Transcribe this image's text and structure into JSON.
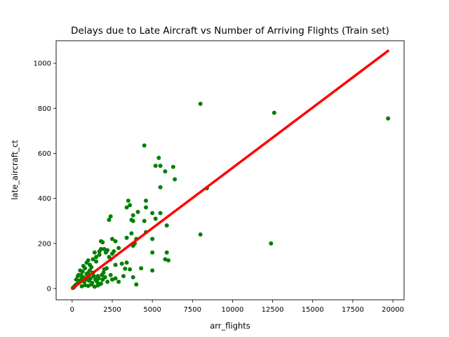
{
  "chart_data": {
    "type": "scatter",
    "title": "Delays due to Late Aircraft vs Number of Arriving Flights (Train set)",
    "xlabel": "arr_flights",
    "ylabel": "late_aircraft_ct",
    "xlim": [
      -1000,
      20700
    ],
    "ylim": [
      -50,
      1100
    ],
    "xticks": [
      0,
      2500,
      5000,
      7500,
      10000,
      12500,
      15000,
      17500,
      20000
    ],
    "yticks": [
      0,
      200,
      400,
      600,
      800,
      1000
    ],
    "grid": false,
    "legend": "none",
    "series": [
      {
        "type": "scatter",
        "color": "#008000",
        "points": [
          [
            8000,
            820
          ],
          [
            12600,
            780
          ],
          [
            19700,
            755
          ],
          [
            4500,
            635
          ],
          [
            5400,
            580
          ],
          [
            5200,
            545
          ],
          [
            5500,
            545
          ],
          [
            6300,
            540
          ],
          [
            5800,
            520
          ],
          [
            6400,
            485
          ],
          [
            5500,
            450
          ],
          [
            8400,
            445
          ],
          [
            4600,
            390
          ],
          [
            3500,
            390
          ],
          [
            3600,
            370
          ],
          [
            3400,
            360
          ],
          [
            4600,
            360
          ],
          [
            4100,
            340
          ],
          [
            5000,
            335
          ],
          [
            5500,
            335
          ],
          [
            3800,
            325
          ],
          [
            2400,
            320
          ],
          [
            3700,
            305
          ],
          [
            2300,
            305
          ],
          [
            3800,
            300
          ],
          [
            4500,
            300
          ],
          [
            5200,
            310
          ],
          [
            5900,
            280
          ],
          [
            4600,
            250
          ],
          [
            3700,
            245
          ],
          [
            8000,
            240
          ],
          [
            3400,
            225
          ],
          [
            4000,
            220
          ],
          [
            5000,
            220
          ],
          [
            2500,
            220
          ],
          [
            2700,
            210
          ],
          [
            1800,
            210
          ],
          [
            1900,
            205
          ],
          [
            3900,
            200
          ],
          [
            3800,
            190
          ],
          [
            12400,
            200
          ],
          [
            2900,
            180
          ],
          [
            2000,
            175
          ],
          [
            2200,
            170
          ],
          [
            5000,
            160
          ],
          [
            5900,
            160
          ],
          [
            1400,
            160
          ],
          [
            2500,
            155
          ],
          [
            1700,
            150
          ],
          [
            5800,
            130
          ],
          [
            6000,
            125
          ],
          [
            3400,
            115
          ],
          [
            1500,
            120
          ],
          [
            2400,
            130
          ],
          [
            3100,
            110
          ],
          [
            2700,
            105
          ],
          [
            4300,
            90
          ],
          [
            3300,
            88
          ],
          [
            3600,
            85
          ],
          [
            5000,
            80
          ],
          [
            2000,
            85
          ],
          [
            1200,
            95
          ],
          [
            3800,
            50
          ],
          [
            3200,
            55
          ],
          [
            2400,
            60
          ],
          [
            2500,
            40
          ],
          [
            2200,
            30
          ],
          [
            2900,
            30
          ],
          [
            4000,
            18
          ],
          [
            2700,
            45
          ],
          [
            1900,
            40
          ],
          [
            1600,
            55
          ],
          [
            1300,
            70
          ],
          [
            1100,
            80
          ],
          [
            900,
            65
          ],
          [
            800,
            90
          ],
          [
            700,
            50
          ],
          [
            600,
            45
          ],
          [
            500,
            30
          ],
          [
            400,
            25
          ],
          [
            300,
            20
          ],
          [
            200,
            15
          ],
          [
            150,
            10
          ],
          [
            100,
            5
          ],
          [
            50,
            3
          ],
          [
            250,
            40
          ],
          [
            350,
            55
          ],
          [
            450,
            35
          ],
          [
            550,
            60
          ],
          [
            650,
            75
          ],
          [
            750,
            30
          ],
          [
            850,
            40
          ],
          [
            950,
            50
          ],
          [
            1050,
            35
          ],
          [
            1150,
            45
          ],
          [
            1250,
            25
          ],
          [
            1350,
            55
          ],
          [
            1450,
            40
          ],
          [
            1550,
            30
          ],
          [
            1650,
            45
          ],
          [
            1750,
            20
          ],
          [
            1850,
            60
          ],
          [
            1950,
            70
          ],
          [
            2050,
            50
          ],
          [
            2150,
            90
          ],
          [
            600,
            10
          ],
          [
            800,
            15
          ],
          [
            1000,
            12
          ],
          [
            1200,
            18
          ],
          [
            1400,
            8
          ],
          [
            1600,
            14
          ],
          [
            1800,
            22
          ],
          [
            700,
            100
          ],
          [
            900,
            115
          ],
          [
            1000,
            125
          ],
          [
            1100,
            105
          ],
          [
            1300,
            130
          ],
          [
            1500,
            140
          ],
          [
            1700,
            165
          ],
          [
            1800,
            175
          ],
          [
            2100,
            160
          ],
          [
            2300,
            140
          ],
          [
            2600,
            165
          ],
          [
            1000,
            70
          ],
          [
            500,
            80
          ],
          [
            400,
            60
          ]
        ]
      },
      {
        "type": "line",
        "color": "#ff0000",
        "x": [
          0,
          19700
        ],
        "y": [
          0,
          1055
        ]
      }
    ]
  }
}
